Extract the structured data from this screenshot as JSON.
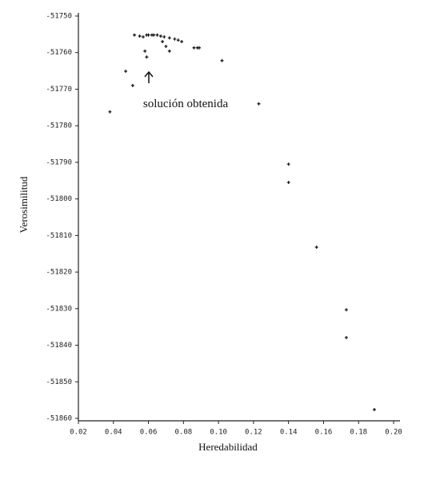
{
  "chart_data": {
    "type": "scatter",
    "x_label": "Heredabilidad",
    "y_label": "Verosimilitud",
    "annotation": "solución obtenida",
    "color": "#111111",
    "xlim": [
      0.02,
      0.2
    ],
    "ylim": [
      -51860,
      -51750
    ],
    "xticks": [
      0.02,
      0.04,
      0.06,
      0.08,
      {
        "value": 0.1,
        "label": "0.10"
      },
      0.12,
      0.14,
      0.16,
      0.18,
      {
        "value": 0.2,
        "label": "0.20"
      }
    ],
    "yticks": [
      -51750,
      -51760,
      -51770,
      -51780,
      -51790,
      -51800,
      -51810,
      -51820,
      -51830,
      -51840,
      -51850,
      -51860
    ],
    "x": [
      0.052,
      0.055,
      0.057,
      0.059,
      0.06,
      0.062,
      0.063,
      0.065,
      0.067,
      0.069,
      0.072,
      0.075,
      0.077,
      0.079,
      0.068,
      0.07,
      0.072,
      0.058,
      0.059,
      0.086,
      0.088,
      0.089,
      0.102,
      0.047,
      0.051,
      0.038,
      0.123,
      0.14,
      0.14,
      0.156,
      0.173,
      0.173,
      0.189
    ],
    "values": [
      -51755.2,
      -51755.5,
      -51755.7,
      -51755.2,
      -51755.2,
      -51755.2,
      -51755.2,
      -51755.2,
      -51755.5,
      -51755.7,
      -51756.0,
      -51756.3,
      -51756.6,
      -51757.0,
      -51757.0,
      -51758.3,
      -51759.6,
      -51759.6,
      -51761.2,
      -51758.7,
      -51758.7,
      -51758.7,
      -51762.2,
      -51765.1,
      -51769.0,
      -51776.2,
      -51774.0,
      -51790.5,
      -51795.5,
      -51813.2,
      -51830.3,
      -51837.9,
      -51857.6
    ]
  }
}
